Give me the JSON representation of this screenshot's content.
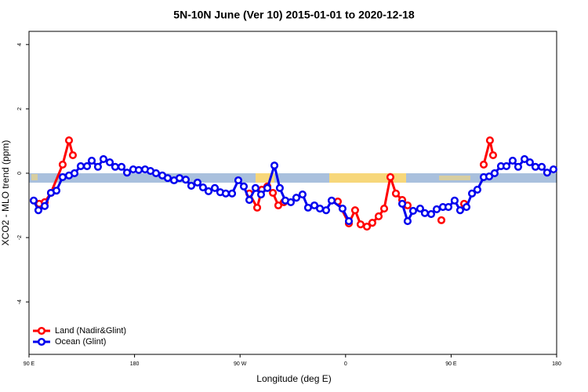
{
  "chart_data": {
    "type": "line",
    "title": "5N-10N June (Ver 10)   2015-01-01 to 2020-12-18",
    "x_label": "Longitude (deg E)",
    "y_label": "XCO2 - MLO trend (ppm)",
    "xlim": [
      90,
      540
    ],
    "ylim": [
      -5.63,
      4.41
    ],
    "xticks": [
      {
        "value": 90,
        "label": "90 E"
      },
      180,
      {
        "value": 270,
        "label": "90 W"
      },
      {
        "value": 360,
        "label": "0"
      },
      {
        "value": 450,
        "label": "90 E"
      },
      {
        "value": 540,
        "label": "180"
      }
    ],
    "yticks": [
      -4,
      -2,
      0,
      2,
      4
    ],
    "legend": "bottom-left",
    "series": [
      {
        "name": "Land (Nadir&Glint)",
        "color": "#ff0000",
        "x": [
          98.7,
          103.4,
          108.7,
          118.7,
          124.1,
          127.4,
          null,
          277.9,
          284.6,
          288.6,
          293.3,
          298.0,
          302.6,
          307.3,
          null,
          353.4,
          362.8,
          368.1,
          372.8,
          378.2,
          382.8,
          388.2,
          392.9,
          398.2,
          402.9,
          408.3,
          412.9,
          null,
          441.7,
          null,
          461.1,
          null,
          477.8,
          483.1,
          485.8
        ],
        "values": [
          -0.95,
          -0.9,
          -0.61,
          0.27,
          1.02,
          0.56,
          null,
          -0.63,
          -1.07,
          -0.51,
          -0.41,
          -0.61,
          -1.0,
          -0.9,
          null,
          -0.88,
          -1.56,
          -1.15,
          -1.59,
          -1.66,
          -1.54,
          -1.34,
          -1.1,
          -0.12,
          -0.63,
          -0.83,
          -1.0,
          null,
          -1.46,
          null,
          -0.95,
          null,
          0.27,
          1.02,
          0.56
        ]
      },
      {
        "name": "Ocean (Glint)",
        "color": "#0000ee",
        "x": [
          94.0,
          98.0,
          103.4,
          108.7,
          113.4,
          118.7,
          124.1,
          128.8,
          134.1,
          139.5,
          143.5,
          148.8,
          153.5,
          158.9,
          163.5,
          168.9,
          173.6,
          178.9,
          183.6,
          189.0,
          193.6,
          198.3,
          203.7,
          208.3,
          213.7,
          218.4,
          223.7,
          228.4,
          233.7,
          238.4,
          243.1,
          248.5,
          253.1,
          257.8,
          263.2,
          268.5,
          273.2,
          277.9,
          283.2,
          287.9,
          293.3,
          299.3,
          303.9,
          308.6,
          313.3,
          318.0,
          323.3,
          328.0,
          333.4,
          338.1,
          343.4,
          348.1,
          357.4,
          362.8,
          null,
          408.3,
          412.9,
          417.6,
          423.6,
          427.6,
          433.0,
          437.7,
          443.0,
          447.7,
          453.0,
          457.7,
          463.1,
          467.8,
          472.4,
          477.8,
          482.5,
          487.1,
          492.5,
          497.2,
          502.5,
          507.2,
          512.6,
          517.2,
          521.9,
          527.3,
          531.9,
          537.3
        ],
        "values": [
          -0.85,
          -1.15,
          -1.02,
          -0.61,
          -0.54,
          -0.12,
          -0.07,
          0.0,
          0.22,
          0.22,
          0.39,
          0.2,
          0.44,
          0.34,
          0.2,
          0.2,
          0.02,
          0.12,
          0.1,
          0.12,
          0.07,
          0.0,
          -0.07,
          -0.15,
          -0.22,
          -0.15,
          -0.2,
          -0.39,
          -0.29,
          -0.44,
          -0.56,
          -0.46,
          -0.59,
          -0.63,
          -0.63,
          -0.22,
          -0.41,
          -0.83,
          -0.46,
          -0.66,
          -0.46,
          0.24,
          -0.46,
          -0.85,
          -0.9,
          -0.76,
          -0.66,
          -1.07,
          -1.0,
          -1.1,
          -1.15,
          -0.85,
          -1.1,
          -1.49,
          null,
          -0.95,
          -1.49,
          -1.17,
          -1.1,
          -1.24,
          -1.27,
          -1.12,
          -1.05,
          -1.05,
          -0.85,
          -1.15,
          -1.05,
          -0.63,
          -0.51,
          -0.12,
          -0.1,
          0.0,
          0.22,
          0.22,
          0.39,
          0.2,
          0.44,
          0.34,
          0.2,
          0.2,
          0.02,
          0.12
        ]
      }
    ]
  }
}
